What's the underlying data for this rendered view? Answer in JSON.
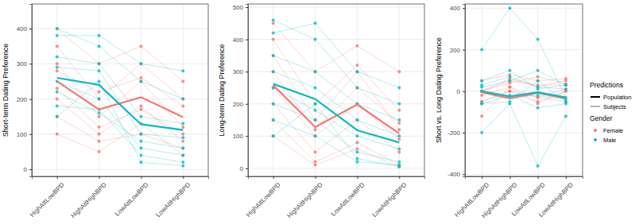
{
  "chart_data": [
    {
      "type": "line",
      "y_label": "Short-term Dating Preference",
      "categories": [
        "HighAttLowBPD",
        "HighAttHighBPD",
        "LowAttLowBPD",
        "LowAttHighBPD"
      ],
      "ylim": [
        -20,
        470
      ],
      "yticks": [
        0,
        100,
        200,
        300,
        400
      ],
      "grid": true,
      "marker": "circle",
      "series": [
        {
          "name": "Female",
          "color": "#F8766D",
          "values": [
            250,
            170,
            205,
            148
          ]
        },
        {
          "name": "Male",
          "color": "#00BFC4",
          "values": [
            260,
            240,
            128,
            112
          ]
        }
      ],
      "subjects": {
        "Female": [
          [
            300,
            150,
            250,
            120
          ],
          [
            200,
            100,
            180,
            80
          ],
          [
            400,
            300,
            350,
            250
          ],
          [
            150,
            80,
            100,
            60
          ],
          [
            350,
            200,
            300,
            200
          ],
          [
            100,
            50,
            130,
            40
          ],
          [
            280,
            220,
            260,
            180
          ],
          [
            230,
            120,
            170,
            100
          ]
        ],
        "Male": [
          [
            320,
            300,
            150,
            130
          ],
          [
            250,
            200,
            60,
            40
          ],
          [
            400,
            350,
            250,
            200
          ],
          [
            180,
            170,
            40,
            20
          ],
          [
            290,
            280,
            100,
            90
          ],
          [
            150,
            250,
            20,
            10
          ],
          [
            380,
            380,
            300,
            280
          ],
          [
            220,
            160,
            80,
            60
          ]
        ]
      }
    },
    {
      "type": "line",
      "y_label": "Long-term Dating Preference",
      "categories": [
        "HighAttLowBPD",
        "HighAttHighBPD",
        "LowAttLowBPD",
        "LowAttHighBPD"
      ],
      "ylim": [
        -25,
        510
      ],
      "yticks": [
        0,
        100,
        200,
        300,
        400,
        500
      ],
      "grid": true,
      "marker": "circle",
      "series": [
        {
          "name": "Female",
          "color": "#F8766D",
          "values": [
            258,
            128,
            198,
            108
          ]
        },
        {
          "name": "Male",
          "color": "#00BFC4",
          "values": [
            262,
            215,
            118,
            80
          ]
        }
      ],
      "subjects": {
        "Female": [
          [
            350,
            150,
            300,
            120
          ],
          [
            200,
            50,
            150,
            50
          ],
          [
            450,
            300,
            380,
            300
          ],
          [
            150,
            20,
            80,
            10
          ],
          [
            300,
            120,
            250,
            140
          ],
          [
            100,
            10,
            60,
            5
          ],
          [
            400,
            200,
            320,
            180
          ],
          [
            250,
            100,
            200,
            90
          ]
        ],
        "Male": [
          [
            300,
            250,
            150,
            100
          ],
          [
            200,
            150,
            50,
            20
          ],
          [
            460,
            400,
            250,
            200
          ],
          [
            150,
            100,
            20,
            10
          ],
          [
            350,
            300,
            200,
            150
          ],
          [
            100,
            200,
            30,
            5
          ],
          [
            420,
            450,
            300,
            250
          ],
          [
            250,
            180,
            100,
            60
          ]
        ]
      }
    },
    {
      "type": "line",
      "y_label": "Short vs. Long Dating Preference",
      "categories": [
        "HighAttLowBPD",
        "HighAttHighBPD",
        "LowAttLowBPD",
        "LowAttHighBPD"
      ],
      "ylim": [
        -410,
        420
      ],
      "yticks": [
        -400,
        -200,
        0,
        200,
        400
      ],
      "grid": true,
      "marker": "circle",
      "legend": "right",
      "legend_groups": [
        {
          "title": "Predictions",
          "entries": [
            "Population",
            "Subjects"
          ]
        },
        {
          "title": "Gender",
          "entries": [
            "Female",
            "Male"
          ]
        }
      ],
      "series": [
        {
          "name": "Female",
          "color": "#F8766D",
          "values": [
            -5,
            -35,
            -8,
            -35
          ]
        },
        {
          "name": "Male",
          "color": "#00BFC4",
          "values": [
            0,
            -25,
            -5,
            -30
          ]
        }
      ],
      "subjects": {
        "Female": [
          [
            -50,
            0,
            -50,
            0
          ],
          [
            0,
            50,
            30,
            30
          ],
          [
            -50,
            0,
            -30,
            -50
          ],
          [
            0,
            60,
            20,
            50
          ],
          [
            50,
            80,
            50,
            60
          ],
          [
            0,
            40,
            70,
            35
          ],
          [
            -120,
            20,
            -60,
            0
          ],
          [
            -20,
            20,
            -30,
            10
          ]
        ],
        "Male": [
          [
            20,
            50,
            100,
            30
          ],
          [
            50,
            100,
            10,
            30
          ],
          [
            -60,
            -50,
            50,
            -50
          ],
          [
            30,
            70,
            20,
            10
          ],
          [
            -60,
            -20,
            -80,
            -60
          ],
          [
            200,
            400,
            250,
            -30
          ],
          [
            -200,
            -60,
            -360,
            -120
          ],
          [
            0,
            -30,
            -20,
            -40
          ]
        ]
      }
    }
  ]
}
